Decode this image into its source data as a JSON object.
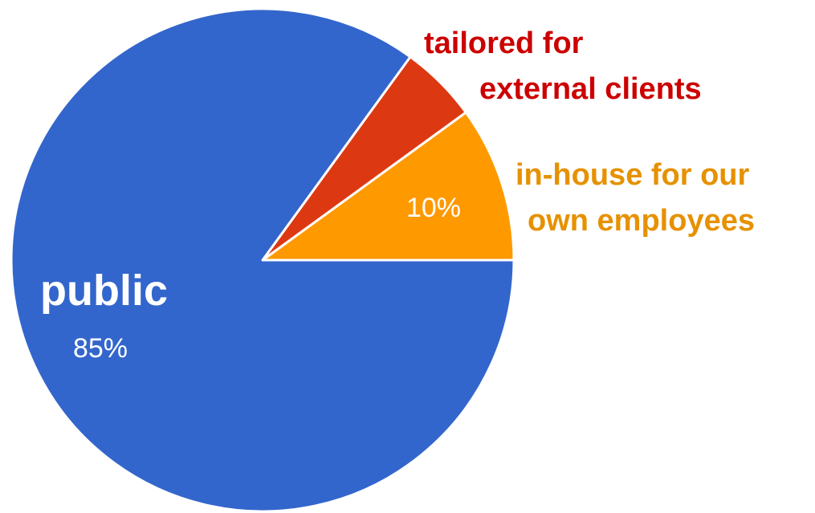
{
  "chart_data": {
    "type": "pie",
    "title": "",
    "slices": [
      {
        "key": "public",
        "label": "public",
        "value": 85,
        "value_label": "85%",
        "color": "#3366cc",
        "label_color": "#3366cc"
      },
      {
        "key": "tailored",
        "label": "tailored for external clients",
        "label_lines": [
          "tailored for",
          "external clients"
        ],
        "value": 5,
        "value_label": "",
        "color": "#dc3912",
        "label_color": "#cc0000"
      },
      {
        "key": "inhouse",
        "label": "in-house for our own employees",
        "label_lines": [
          "in-house for our",
          "own employees"
        ],
        "value": 10,
        "value_label": "10%",
        "color": "#ff9900",
        "label_color": "#e69100"
      }
    ],
    "start_angle_deg": 0,
    "direction": "counterclockwise-from-3-oclock",
    "legend": "none",
    "slice_border_color": "#ffffff"
  }
}
